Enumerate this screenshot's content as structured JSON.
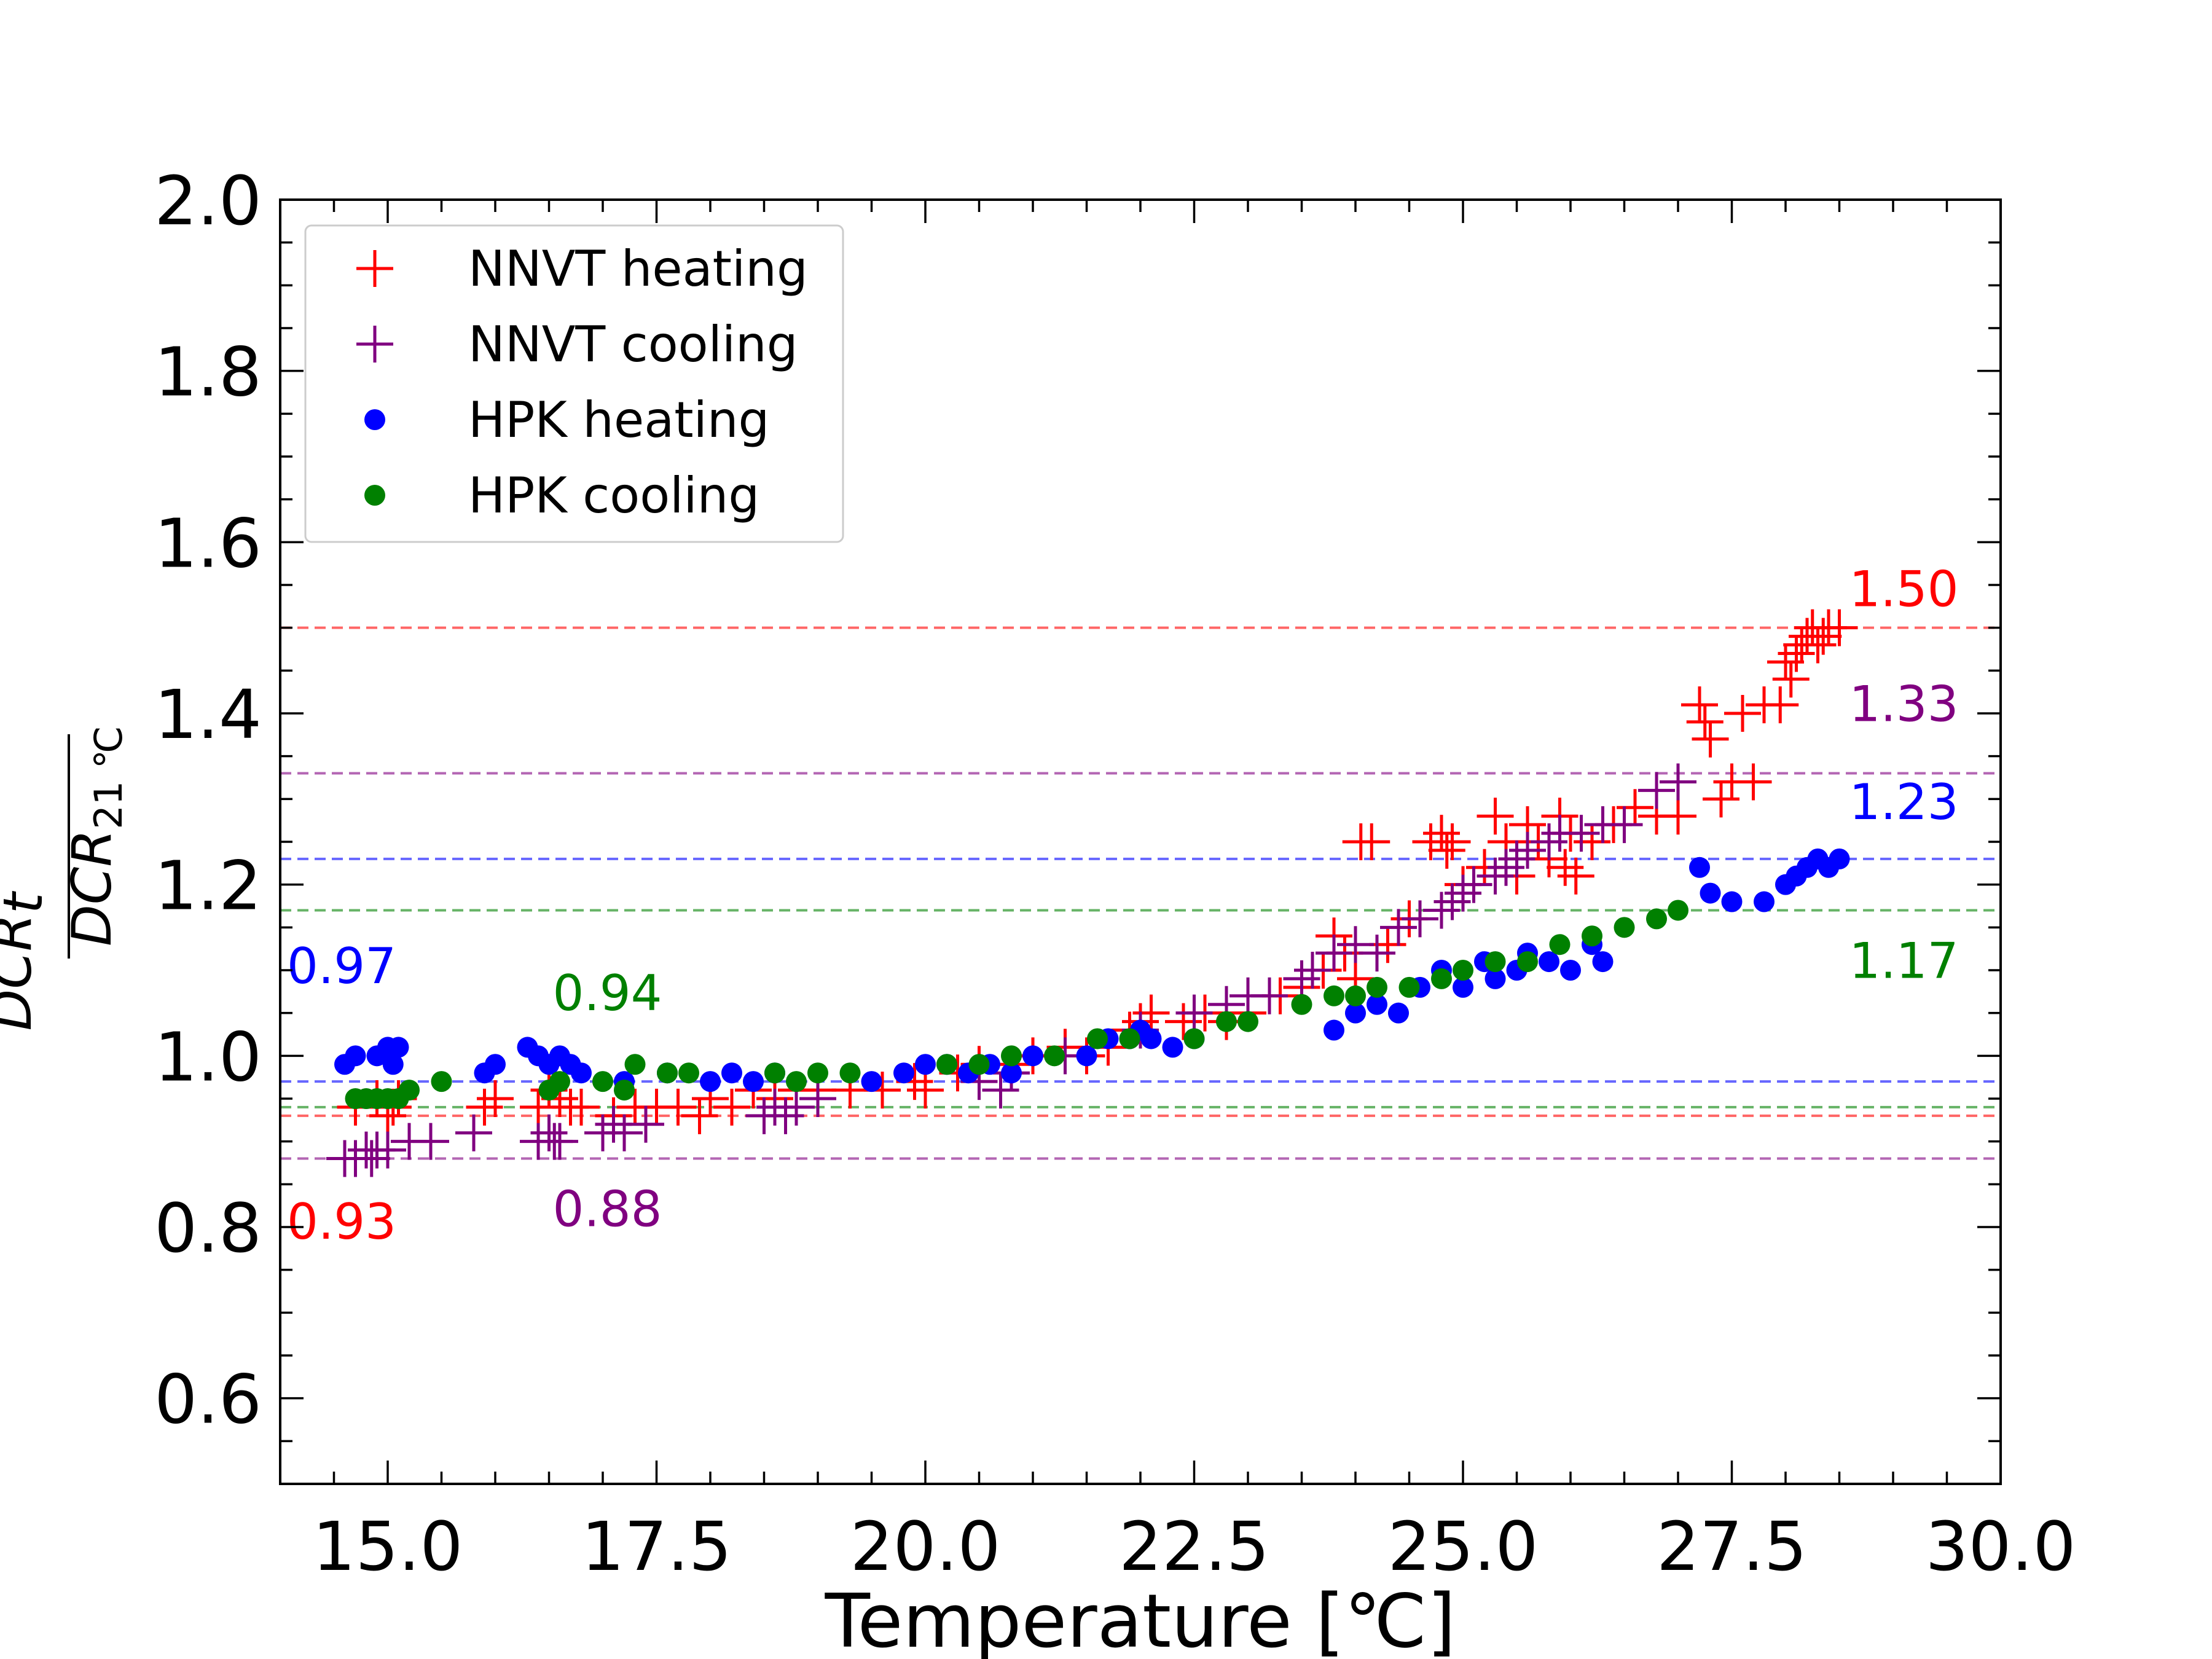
{
  "chart_data": {
    "type": "scatter",
    "xlabel": "Temperature [℃]",
    "ylabel": {
      "numerator": "DCR",
      "numerator_sub": "t",
      "denominator": "DCR",
      "denominator_sub": "21 ℃"
    },
    "xlim": [
      14.0,
      30.0
    ],
    "ylim": [
      0.5,
      2.0
    ],
    "xticks": [
      "15.0",
      "17.5",
      "20.0",
      "22.5",
      "25.0",
      "27.5",
      "30.0"
    ],
    "yticks": [
      "0.6",
      "0.8",
      "1.0",
      "1.2",
      "1.4",
      "1.6",
      "1.8",
      "2.0"
    ],
    "grid": false,
    "legend_position": "upper-left",
    "series": [
      {
        "name": "NNVT heating",
        "marker": "plus",
        "color": "#ff0000",
        "points": [
          [
            14.7,
            0.94
          ],
          [
            14.9,
            0.95
          ],
          [
            15.0,
            0.93
          ],
          [
            15.05,
            0.94
          ],
          [
            15.1,
            0.95
          ],
          [
            15.9,
            0.94
          ],
          [
            16.0,
            0.95
          ],
          [
            16.4,
            0.94
          ],
          [
            16.5,
            0.96
          ],
          [
            16.6,
            0.95
          ],
          [
            16.7,
            0.94
          ],
          [
            16.8,
            0.94
          ],
          [
            17.1,
            0.93
          ],
          [
            17.3,
            0.94
          ],
          [
            17.5,
            0.94
          ],
          [
            17.7,
            0.94
          ],
          [
            17.9,
            0.93
          ],
          [
            18.0,
            0.95
          ],
          [
            18.2,
            0.94
          ],
          [
            18.4,
            0.96
          ],
          [
            18.6,
            0.95
          ],
          [
            18.8,
            0.96
          ],
          [
            19.0,
            0.96
          ],
          [
            19.3,
            0.96
          ],
          [
            19.6,
            0.96
          ],
          [
            19.9,
            0.97
          ],
          [
            20.0,
            0.96
          ],
          [
            20.3,
            0.98
          ],
          [
            20.5,
            0.99
          ],
          [
            20.8,
            0.99
          ],
          [
            21.0,
            1.0
          ],
          [
            21.3,
            1.01
          ],
          [
            21.5,
            1.0
          ],
          [
            21.7,
            1.01
          ],
          [
            21.9,
            1.03
          ],
          [
            22.0,
            1.04
          ],
          [
            22.1,
            1.05
          ],
          [
            22.4,
            1.04
          ],
          [
            22.6,
            1.05
          ],
          [
            22.8,
            1.04
          ],
          [
            23.0,
            1.05
          ],
          [
            23.3,
            1.07
          ],
          [
            23.5,
            1.08
          ],
          [
            23.7,
            1.1
          ],
          [
            23.8,
            1.14
          ],
          [
            23.9,
            1.12
          ],
          [
            24.0,
            1.09
          ],
          [
            24.05,
            1.25
          ],
          [
            24.15,
            1.25
          ],
          [
            24.3,
            1.13
          ],
          [
            24.5,
            1.16
          ],
          [
            24.7,
            1.25
          ],
          [
            24.8,
            1.26
          ],
          [
            24.85,
            1.24
          ],
          [
            24.9,
            1.25
          ],
          [
            25.0,
            1.2
          ],
          [
            25.2,
            1.22
          ],
          [
            25.3,
            1.28
          ],
          [
            25.4,
            1.25
          ],
          [
            25.5,
            1.21
          ],
          [
            25.6,
            1.27
          ],
          [
            25.7,
            1.25
          ],
          [
            25.8,
            1.23
          ],
          [
            25.9,
            1.28
          ],
          [
            25.95,
            1.22
          ],
          [
            26.0,
            1.26
          ],
          [
            26.05,
            1.21
          ],
          [
            26.2,
            1.25
          ],
          [
            26.4,
            1.27
          ],
          [
            26.6,
            1.29
          ],
          [
            26.8,
            1.28
          ],
          [
            27.0,
            1.28
          ],
          [
            27.2,
            1.41
          ],
          [
            27.25,
            1.39
          ],
          [
            27.3,
            1.37
          ],
          [
            27.4,
            1.3
          ],
          [
            27.5,
            1.32
          ],
          [
            27.6,
            1.4
          ],
          [
            27.7,
            1.32
          ],
          [
            27.8,
            1.41
          ],
          [
            27.95,
            1.41
          ],
          [
            28.0,
            1.46
          ],
          [
            28.05,
            1.44
          ],
          [
            28.1,
            1.47
          ],
          [
            28.15,
            1.48
          ],
          [
            28.2,
            1.49
          ],
          [
            28.25,
            1.5
          ],
          [
            28.3,
            1.48
          ],
          [
            28.35,
            1.49
          ],
          [
            28.4,
            1.5
          ],
          [
            28.5,
            1.5
          ]
        ]
      },
      {
        "name": "NNVT cooling",
        "marker": "plus",
        "color": "#800080",
        "points": [
          [
            14.6,
            0.88
          ],
          [
            14.7,
            0.88
          ],
          [
            14.8,
            0.89
          ],
          [
            14.85,
            0.88
          ],
          [
            14.9,
            0.89
          ],
          [
            15.0,
            0.89
          ],
          [
            15.2,
            0.9
          ],
          [
            15.4,
            0.9
          ],
          [
            15.8,
            0.91
          ],
          [
            16.4,
            0.9
          ],
          [
            16.5,
            0.91
          ],
          [
            16.55,
            0.9
          ],
          [
            16.6,
            0.9
          ],
          [
            17.0,
            0.91
          ],
          [
            17.1,
            0.92
          ],
          [
            17.2,
            0.91
          ],
          [
            17.4,
            0.92
          ],
          [
            18.5,
            0.93
          ],
          [
            18.6,
            0.94
          ],
          [
            18.7,
            0.93
          ],
          [
            18.8,
            0.94
          ],
          [
            19.0,
            0.95
          ],
          [
            20.5,
            0.97
          ],
          [
            20.7,
            0.96
          ],
          [
            20.8,
            0.98
          ],
          [
            21.3,
            1.0
          ],
          [
            22.0,
            1.03
          ],
          [
            22.5,
            1.05
          ],
          [
            22.8,
            1.06
          ],
          [
            23.0,
            1.07
          ],
          [
            23.2,
            1.07
          ],
          [
            23.5,
            1.09
          ],
          [
            23.6,
            1.1
          ],
          [
            23.8,
            1.12
          ],
          [
            24.0,
            1.13
          ],
          [
            24.2,
            1.12
          ],
          [
            24.4,
            1.15
          ],
          [
            24.6,
            1.16
          ],
          [
            24.8,
            1.17
          ],
          [
            24.9,
            1.18
          ],
          [
            25.0,
            1.19
          ],
          [
            25.1,
            1.2
          ],
          [
            25.3,
            1.21
          ],
          [
            25.4,
            1.22
          ],
          [
            25.5,
            1.23
          ],
          [
            25.6,
            1.24
          ],
          [
            25.8,
            1.25
          ],
          [
            25.9,
            1.26
          ],
          [
            26.1,
            1.26
          ],
          [
            26.3,
            1.27
          ],
          [
            26.5,
            1.27
          ],
          [
            26.8,
            1.31
          ],
          [
            27.0,
            1.32
          ]
        ]
      },
      {
        "name": "HPK heating",
        "marker": "dot",
        "color": "#0000ff",
        "points": [
          [
            14.6,
            0.99
          ],
          [
            14.7,
            1.0
          ],
          [
            14.9,
            1.0
          ],
          [
            15.0,
            1.01
          ],
          [
            15.1,
            1.01
          ],
          [
            15.05,
            0.99
          ],
          [
            15.9,
            0.98
          ],
          [
            16.0,
            0.99
          ],
          [
            16.3,
            1.01
          ],
          [
            16.4,
            1.0
          ],
          [
            16.5,
            0.99
          ],
          [
            16.6,
            1.0
          ],
          [
            16.7,
            0.99
          ],
          [
            16.8,
            0.98
          ],
          [
            17.2,
            0.97
          ],
          [
            17.6,
            0.98
          ],
          [
            18.0,
            0.97
          ],
          [
            18.2,
            0.98
          ],
          [
            18.4,
            0.97
          ],
          [
            18.6,
            0.98
          ],
          [
            19.5,
            0.97
          ],
          [
            19.8,
            0.98
          ],
          [
            20.0,
            0.99
          ],
          [
            20.2,
            0.99
          ],
          [
            20.4,
            0.98
          ],
          [
            20.6,
            0.99
          ],
          [
            20.8,
            0.98
          ],
          [
            21.0,
            1.0
          ],
          [
            21.5,
            1.0
          ],
          [
            21.7,
            1.02
          ],
          [
            21.9,
            1.02
          ],
          [
            22.0,
            1.03
          ],
          [
            22.1,
            1.02
          ],
          [
            22.3,
            1.01
          ],
          [
            22.5,
            1.02
          ],
          [
            23.8,
            1.03
          ],
          [
            24.0,
            1.05
          ],
          [
            24.2,
            1.06
          ],
          [
            24.4,
            1.05
          ],
          [
            24.6,
            1.08
          ],
          [
            24.8,
            1.1
          ],
          [
            25.0,
            1.08
          ],
          [
            25.2,
            1.11
          ],
          [
            25.3,
            1.09
          ],
          [
            25.5,
            1.1
          ],
          [
            25.6,
            1.12
          ],
          [
            25.8,
            1.11
          ],
          [
            26.0,
            1.1
          ],
          [
            26.2,
            1.13
          ],
          [
            26.3,
            1.11
          ],
          [
            27.2,
            1.22
          ],
          [
            27.3,
            1.19
          ],
          [
            27.5,
            1.18
          ],
          [
            27.8,
            1.18
          ],
          [
            28.0,
            1.2
          ],
          [
            28.1,
            1.21
          ],
          [
            28.2,
            1.22
          ],
          [
            28.3,
            1.23
          ],
          [
            28.4,
            1.22
          ],
          [
            28.5,
            1.23
          ]
        ]
      },
      {
        "name": "HPK cooling",
        "marker": "dot",
        "color": "#008000",
        "points": [
          [
            14.7,
            0.95
          ],
          [
            14.8,
            0.95
          ],
          [
            14.9,
            0.95
          ],
          [
            15.0,
            0.95
          ],
          [
            15.1,
            0.95
          ],
          [
            15.2,
            0.96
          ],
          [
            15.5,
            0.97
          ],
          [
            16.5,
            0.96
          ],
          [
            16.6,
            0.97
          ],
          [
            17.0,
            0.97
          ],
          [
            17.2,
            0.96
          ],
          [
            17.3,
            0.99
          ],
          [
            17.6,
            0.98
          ],
          [
            17.8,
            0.98
          ],
          [
            18.6,
            0.98
          ],
          [
            18.8,
            0.97
          ],
          [
            19.0,
            0.98
          ],
          [
            19.3,
            0.98
          ],
          [
            20.2,
            0.99
          ],
          [
            20.5,
            0.99
          ],
          [
            20.8,
            1.0
          ],
          [
            21.2,
            1.0
          ],
          [
            21.6,
            1.02
          ],
          [
            21.9,
            1.02
          ],
          [
            22.5,
            1.02
          ],
          [
            22.8,
            1.04
          ],
          [
            23.0,
            1.04
          ],
          [
            23.5,
            1.06
          ],
          [
            23.8,
            1.07
          ],
          [
            24.0,
            1.07
          ],
          [
            24.2,
            1.08
          ],
          [
            24.5,
            1.08
          ],
          [
            24.8,
            1.09
          ],
          [
            25.0,
            1.1
          ],
          [
            25.3,
            1.11
          ],
          [
            25.6,
            1.11
          ],
          [
            25.9,
            1.13
          ],
          [
            26.2,
            1.14
          ],
          [
            26.5,
            1.15
          ],
          [
            26.8,
            1.16
          ],
          [
            27.0,
            1.17
          ]
        ]
      }
    ],
    "reference_lines": [
      {
        "series": "NNVT heating",
        "y": 1.5,
        "label": "1.50",
        "color": "#ff0000"
      },
      {
        "series": "NNVT cooling",
        "y": 1.33,
        "label": "1.33",
        "color": "#800080"
      },
      {
        "series": "HPK heating",
        "y": 1.23,
        "label": "1.23",
        "color": "#0000ff"
      },
      {
        "series": "HPK cooling",
        "y": 1.17,
        "label": "1.17",
        "color": "#008000"
      },
      {
        "series": "HPK heating",
        "y": 0.97,
        "label": "0.97",
        "color": "#0000ff"
      },
      {
        "series": "HPK cooling",
        "y": 0.94,
        "label": "0.94",
        "color": "#008000"
      },
      {
        "series": "NNVT heating",
        "y": 0.93,
        "label": "0.93",
        "color": "#ff0000"
      },
      {
        "series": "NNVT cooling",
        "y": 0.88,
        "label": "0.88",
        "color": "#800080"
      }
    ]
  }
}
